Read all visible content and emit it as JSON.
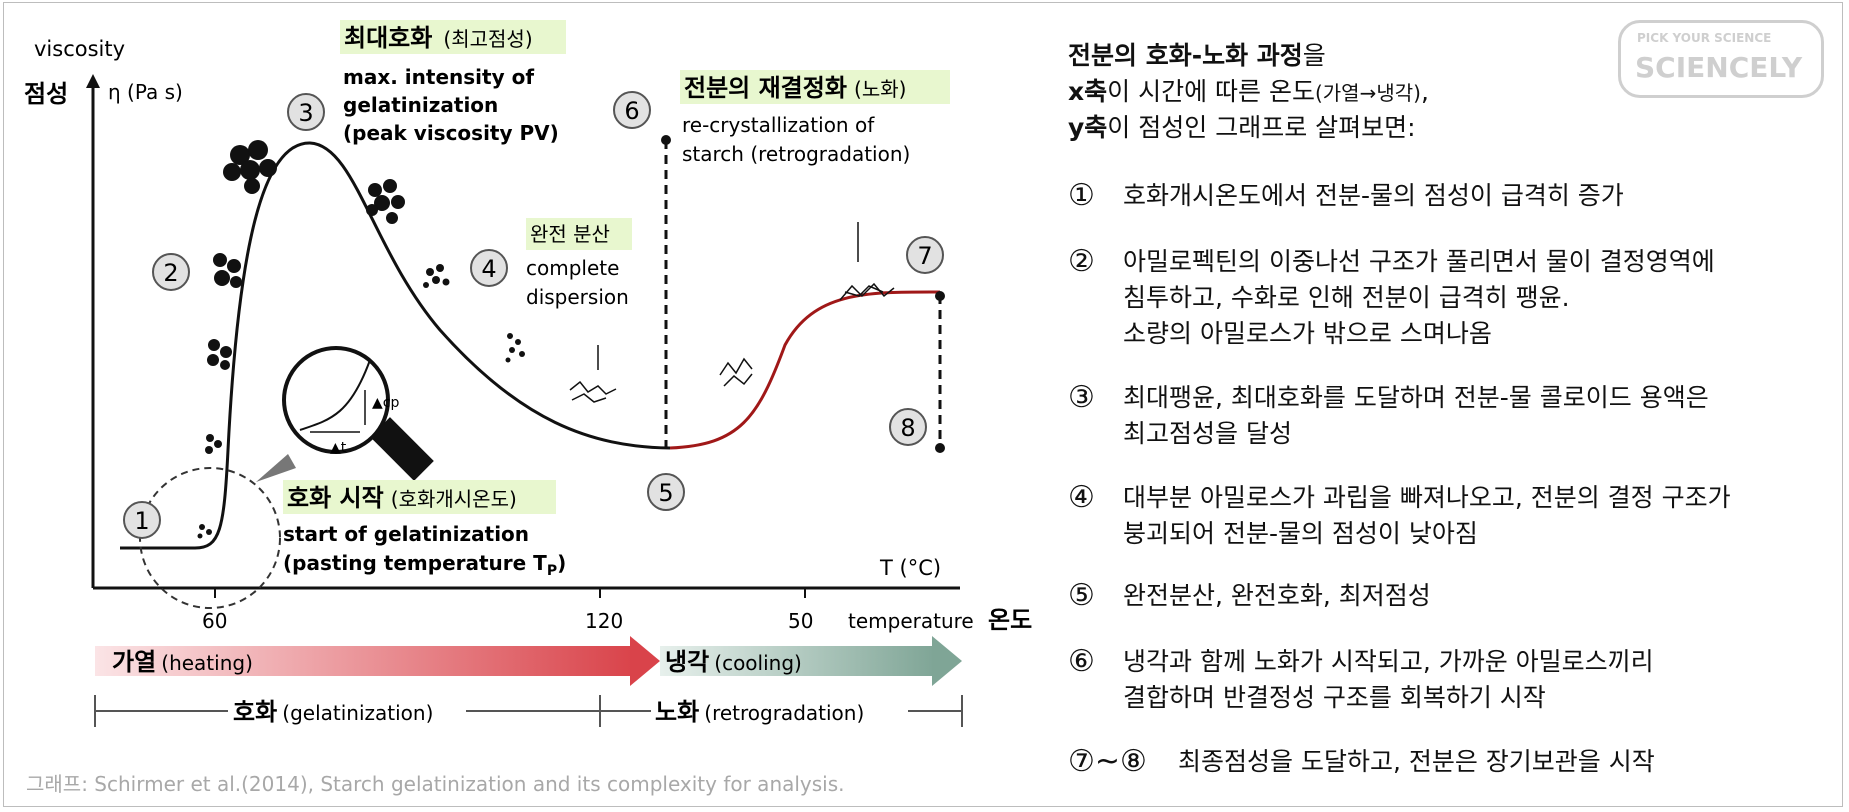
{
  "axis": {
    "y_en": "viscosity",
    "y_ko": "점성",
    "y_unit": "η (Pa s)",
    "x_unit": "T (°C)",
    "x_en": "temperature",
    "x_ko": "온도",
    "ticks": [
      "60",
      "120",
      "50"
    ]
  },
  "stages": {
    "n1": "1",
    "n2": "2",
    "n3": "3",
    "n4": "4",
    "n5": "5",
    "n6": "6",
    "n7": "7",
    "n8": "8"
  },
  "labels": {
    "peak_ko": "최대호화",
    "peak_ko_sub": "(최고점성)",
    "peak_en": [
      "max. intensity of",
      "gelatinization",
      "(peak viscosity PV)"
    ],
    "retro_ko": "전분의 재결정화",
    "retro_ko_sub": "(노화)",
    "retro_en": [
      "re-crystallization  of",
      "starch (retrogradation)"
    ],
    "disp_ko": "완전 분산",
    "disp_en": [
      "complete",
      "dispersion"
    ],
    "start_ko": "호화 시작",
    "start_ko_sub": "(호화개시온도)",
    "start_en": [
      "start of gelatinization",
      "(pasting temperature T"
    ],
    "start_sub_p": "P",
    "start_close": ")",
    "inset_cp": "▲cp",
    "inset_t": "▲t"
  },
  "arrows": {
    "heating_ko": "가열",
    "heating_en": "(heating)",
    "cooling_ko": "냉각",
    "cooling_en": "(cooling)",
    "gel_ko": "호화",
    "gel_en": "(gelatinization)",
    "retro_ko": "노화",
    "retro_en": "(retrogradation)"
  },
  "caption": "그래프: Schirmer et al.(2014), Starch gelatinization and its complexity for analysis.",
  "logo": {
    "line1": "PICK YOUR SCIENCE",
    "line2": "SCIENCELY"
  },
  "right": {
    "intro": [
      {
        "bold": "전분의 호화-노화 과정",
        "rest": "을",
        "small": ""
      },
      {
        "bold": "x축",
        "rest": "이 시간에 따른 온도",
        "small": "(가열→냉각)",
        "tail": ","
      },
      {
        "bold": "y축",
        "rest": "이 점성인 그래프로 살펴보면:",
        "small": ""
      }
    ],
    "items": [
      {
        "num": "①",
        "text": "호화개시온도에서 전분-물의 점성이 급격히 증가"
      },
      {
        "num": "②",
        "text": "아밀로펙틴의 이중나선 구조가 풀리면서 물이 결정영역에\n침투하고, 수화로 인해 전분이 급격히 팽윤.\n소량의 아밀로스가 밖으로 스며나옴"
      },
      {
        "num": "③",
        "text": "최대팽윤, 최대호화를 도달하며 전분-물 콜로이드 용액은\n최고점성을 달성"
      },
      {
        "num": "④",
        "text": "대부분 아밀로스가 과립을 빠져나오고, 전분의 결정 구조가\n붕괴되어 전분-물의 점성이 낮아짐"
      },
      {
        "num": "⑤",
        "text": "완전분산, 완전호화, 최저점성"
      },
      {
        "num": "⑥",
        "text": "냉각과 함께 노화가 시작되고, 가까운 아밀로스끼리\n결합하며 반결정성 구조를 회복하기 시작"
      },
      {
        "num": "⑦~⑧",
        "text": "최종점성을 도달하고, 전분은 장기보관을 시작"
      }
    ]
  },
  "colors": {
    "heating_arrow": "#d9434a",
    "cooling_arrow": "#7fa596",
    "retro_curve": "#a01818",
    "label_highlight": "#e8f7cf"
  }
}
